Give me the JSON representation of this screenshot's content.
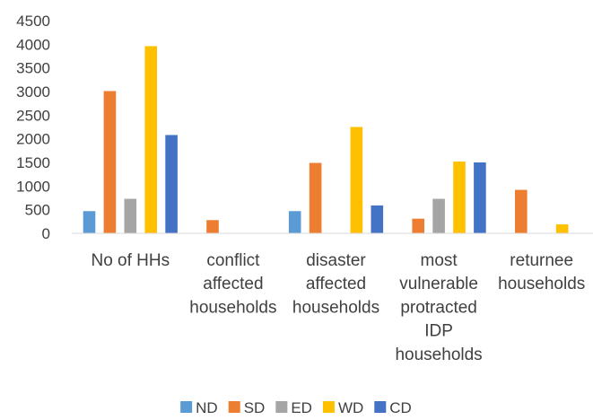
{
  "chart_data": {
    "type": "bar",
    "title": "",
    "xlabel": "",
    "ylabel": "",
    "ylim": [
      0,
      4500
    ],
    "yticks": [
      0,
      500,
      1000,
      1500,
      2000,
      2500,
      3000,
      3500,
      4000,
      4500
    ],
    "grid": false,
    "legend_position": "bottom",
    "categories": [
      [
        "No of HHs"
      ],
      [
        "conflict",
        "affected",
        "households"
      ],
      [
        "disaster",
        "affected",
        "households"
      ],
      [
        "most",
        "vulnerable",
        "protracted",
        "IDP",
        "households"
      ],
      [
        "returnee",
        "households"
      ]
    ],
    "series": [
      {
        "name": "ND",
        "color": "#5B9BD5",
        "values": [
          470,
          0,
          470,
          0,
          0
        ]
      },
      {
        "name": "SD",
        "color": "#ED7D31",
        "values": [
          3010,
          280,
          1490,
          310,
          920
        ]
      },
      {
        "name": "ED",
        "color": "#A5A5A5",
        "values": [
          730,
          0,
          0,
          730,
          0
        ]
      },
      {
        "name": "WD",
        "color": "#FFC000",
        "values": [
          3960,
          0,
          2250,
          1520,
          190
        ]
      },
      {
        "name": "CD",
        "color": "#4472C4",
        "values": [
          2080,
          0,
          590,
          1500,
          0
        ]
      }
    ]
  }
}
